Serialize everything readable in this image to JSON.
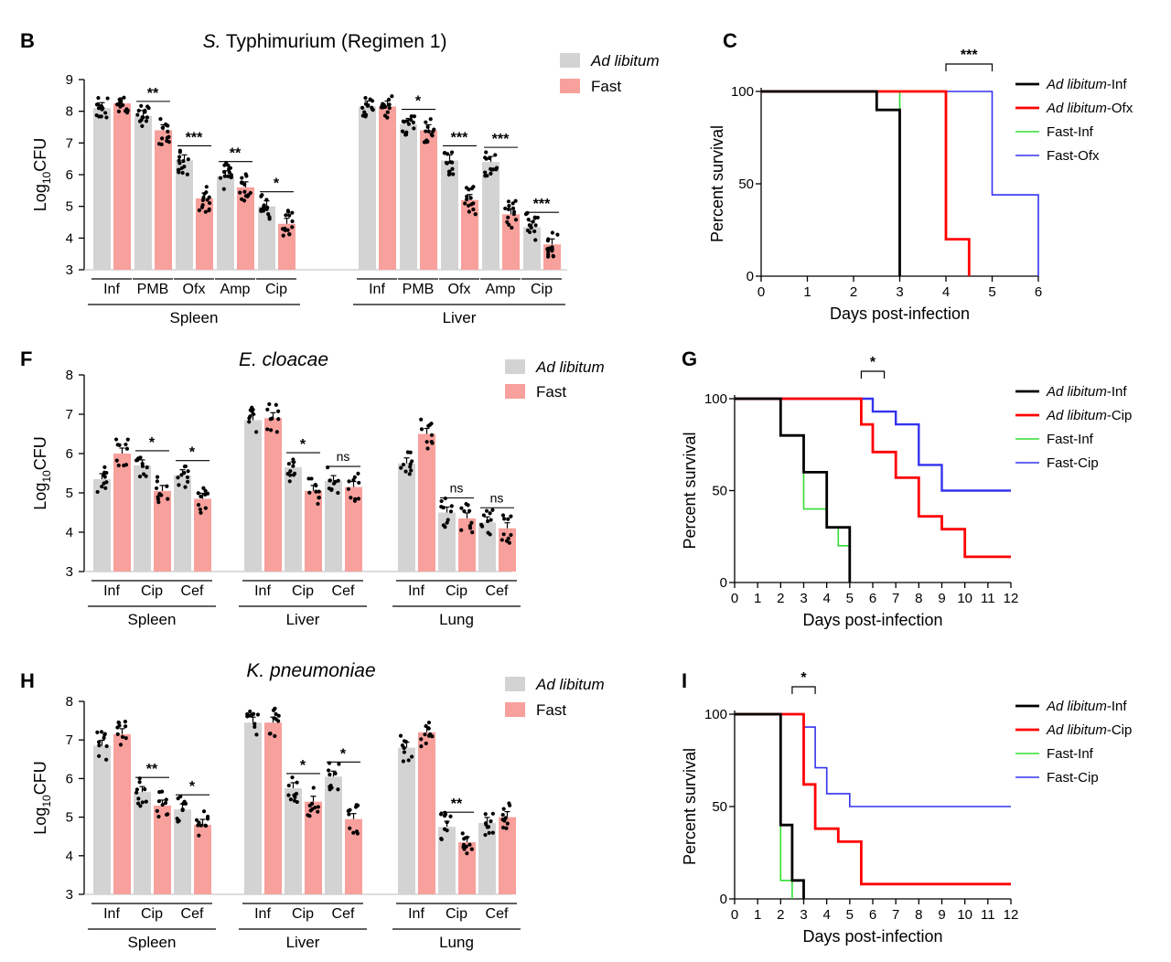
{
  "colors": {
    "ad_libitum": "#d3d3d3",
    "fast": "#f8a09c",
    "axis": "#000000"
  },
  "chart_data": [
    {
      "type": "bar",
      "panel": "B",
      "title": "S. Typhimurium (Regimen 1)",
      "title_italic": "S.",
      "title_rest": " Typhimurium (Regimen 1)",
      "ylabel": "Log10CFU",
      "ylim": [
        3,
        9
      ],
      "yticks": [
        3,
        4,
        5,
        6,
        7,
        8,
        9
      ],
      "legend": [
        "Ad libitum",
        "Fast"
      ],
      "groups": [
        {
          "name": "Spleen",
          "categories": [
            "Inf",
            "PMB",
            "Ofx",
            "Amp",
            "Cip"
          ],
          "ad_libitum": [
            8.1,
            7.85,
            6.45,
            5.95,
            5.0
          ],
          "fast": [
            8.25,
            7.4,
            5.25,
            5.6,
            4.45
          ],
          "sig": [
            "",
            "**",
            "***",
            "**",
            "*"
          ]
        },
        {
          "name": "Liver",
          "categories": [
            "Inf",
            "PMB",
            "Ofx",
            "Amp",
            "Cip"
          ],
          "ad_libitum": [
            8.15,
            7.6,
            6.45,
            6.4,
            4.35
          ],
          "fast": [
            8.15,
            7.4,
            5.2,
            4.75,
            3.8
          ],
          "sig": [
            "",
            "*",
            "***",
            "***",
            "***"
          ]
        }
      ]
    },
    {
      "type": "bar",
      "panel": "F",
      "title": "E. cloacae",
      "ylabel": "Log10CFU",
      "ylim": [
        3,
        8
      ],
      "yticks": [
        3,
        4,
        5,
        6,
        7,
        8
      ],
      "legend": [
        "Ad libitum",
        "Fast"
      ],
      "groups": [
        {
          "name": "Spleen",
          "categories": [
            "Inf",
            "Cip",
            "Cef"
          ],
          "ad_libitum": [
            5.35,
            5.7,
            5.45
          ],
          "fast": [
            6.0,
            5.05,
            4.85
          ],
          "sig": [
            "",
            "*",
            "*"
          ]
        },
        {
          "name": "Liver",
          "categories": [
            "Inf",
            "Cip",
            "Cef"
          ],
          "ad_libitum": [
            6.85,
            5.65,
            5.3
          ],
          "fast": [
            6.9,
            5.05,
            5.15
          ],
          "sig": [
            "",
            "*",
            "ns"
          ]
        },
        {
          "name": "Lung",
          "categories": [
            "Inf",
            "Cip",
            "Cef"
          ],
          "ad_libitum": [
            5.75,
            4.5,
            4.25
          ],
          "fast": [
            6.5,
            4.35,
            4.1
          ],
          "sig": [
            "",
            "ns",
            "ns"
          ]
        }
      ]
    },
    {
      "type": "bar",
      "panel": "H",
      "title": "K. pneumoniae",
      "ylabel": "Log10CFU",
      "ylim": [
        3,
        8
      ],
      "yticks": [
        3,
        4,
        5,
        6,
        7,
        8
      ],
      "legend": [
        "Ad libitum",
        "Fast"
      ],
      "groups": [
        {
          "name": "Spleen",
          "categories": [
            "Inf",
            "Cip",
            "Cef"
          ],
          "ad_libitum": [
            6.85,
            5.65,
            5.2
          ],
          "fast": [
            7.15,
            5.3,
            4.8
          ],
          "sig": [
            "",
            "**",
            "*"
          ]
        },
        {
          "name": "Liver",
          "categories": [
            "Inf",
            "Cip",
            "Cef"
          ],
          "ad_libitum": [
            7.45,
            5.75,
            6.05
          ],
          "fast": [
            7.45,
            5.4,
            4.95
          ],
          "sig": [
            "",
            "*",
            "*"
          ]
        },
        {
          "name": "Lung",
          "categories": [
            "Inf",
            "Cip",
            "Cef"
          ],
          "ad_libitum": [
            6.8,
            4.75,
            4.85
          ],
          "fast": [
            7.2,
            4.35,
            5.0
          ],
          "sig": [
            "",
            "**",
            ""
          ]
        }
      ]
    },
    {
      "type": "line",
      "panel": "C",
      "xlabel": "Days post-infection",
      "ylabel": "Percent survival",
      "xlim": [
        0,
        6
      ],
      "xticks": [
        0,
        1,
        2,
        3,
        4,
        5,
        6
      ],
      "ylim": [
        0,
        100
      ],
      "yticks": [
        0,
        50,
        100
      ],
      "sig": "***",
      "sig_x": [
        4,
        5
      ],
      "series": [
        {
          "name": "Ad libitum-Inf",
          "name_italic": "Ad libitum",
          "name_rest": "-Inf",
          "color": "#000000",
          "points": [
            [
              0,
              100
            ],
            [
              2.5,
              100
            ],
            [
              2.5,
              90
            ],
            [
              3,
              90
            ],
            [
              3,
              0
            ]
          ]
        },
        {
          "name": "Ad libitum-Ofx",
          "name_italic": "Ad libitum",
          "name_rest": "-Ofx",
          "color": "#ff0000",
          "points": [
            [
              0,
              100
            ],
            [
              4,
              100
            ],
            [
              4,
              20
            ],
            [
              4.5,
              20
            ],
            [
              4.5,
              0
            ]
          ]
        },
        {
          "name": "Fast-Inf",
          "color": "#33dd33",
          "points": [
            [
              0,
              100
            ],
            [
              2.5,
              100
            ],
            [
              2.5,
              100
            ],
            [
              3,
              100
            ],
            [
              3,
              0
            ]
          ]
        },
        {
          "name": "Fast-Ofx",
          "color": "#3333ee",
          "points": [
            [
              0,
              100
            ],
            [
              5,
              100
            ],
            [
              5,
              44
            ],
            [
              6,
              44
            ],
            [
              6,
              0
            ]
          ]
        }
      ]
    },
    {
      "type": "line",
      "panel": "G",
      "xlabel": "Days post-infection",
      "ylabel": "Percent survival",
      "xlim": [
        0,
        12
      ],
      "xticks": [
        0,
        1,
        2,
        3,
        4,
        5,
        6,
        7,
        8,
        9,
        10,
        11,
        12
      ],
      "ylim": [
        0,
        100
      ],
      "yticks": [
        0,
        50,
        100
      ],
      "sig": "*",
      "sig_x": [
        5.5,
        6.5
      ],
      "series": [
        {
          "name": "Ad libitum-Inf",
          "name_italic": "Ad libitum",
          "name_rest": "-Inf",
          "color": "#000000",
          "points": [
            [
              0,
              100
            ],
            [
              2,
              100
            ],
            [
              2,
              80
            ],
            [
              3,
              80
            ],
            [
              3,
              60
            ],
            [
              4,
              60
            ],
            [
              4,
              30
            ],
            [
              5,
              30
            ],
            [
              5,
              0
            ]
          ]
        },
        {
          "name": "Ad libitum-Cip",
          "name_italic": "Ad libitum",
          "name_rest": "-Cip",
          "color": "#ff0000",
          "points": [
            [
              0,
              100
            ],
            [
              5.5,
              100
            ],
            [
              5.5,
              86
            ],
            [
              6,
              86
            ],
            [
              6,
              71
            ],
            [
              7,
              71
            ],
            [
              7,
              57
            ],
            [
              8,
              57
            ],
            [
              8,
              36
            ],
            [
              9,
              36
            ],
            [
              9,
              29
            ],
            [
              10,
              29
            ],
            [
              10,
              14
            ],
            [
              12,
              14
            ]
          ]
        },
        {
          "name": "Fast-Inf",
          "color": "#33dd33",
          "points": [
            [
              0,
              100
            ],
            [
              2,
              100
            ],
            [
              2,
              80
            ],
            [
              3,
              80
            ],
            [
              3,
              40
            ],
            [
              4,
              40
            ],
            [
              4,
              30
            ],
            [
              4.5,
              30
            ],
            [
              4.5,
              20
            ],
            [
              5,
              20
            ],
            [
              5,
              0
            ]
          ]
        },
        {
          "name": "Fast-Cip",
          "color": "#3333ee",
          "points": [
            [
              0,
              100
            ],
            [
              6,
              100
            ],
            [
              6,
              93
            ],
            [
              7,
              93
            ],
            [
              7,
              86
            ],
            [
              8,
              86
            ],
            [
              8,
              64
            ],
            [
              9,
              64
            ],
            [
              9,
              50
            ],
            [
              12,
              50
            ]
          ]
        }
      ]
    },
    {
      "type": "line",
      "panel": "I",
      "xlabel": "Days post-infection",
      "ylabel": "Percent survival",
      "xlim": [
        0,
        12
      ],
      "xticks": [
        0,
        1,
        2,
        3,
        4,
        5,
        6,
        7,
        8,
        9,
        10,
        11,
        12
      ],
      "ylim": [
        0,
        100
      ],
      "yticks": [
        0,
        50,
        100
      ],
      "sig": "*",
      "sig_x": [
        2.5,
        3.5
      ],
      "series": [
        {
          "name": "Ad libitum-Inf",
          "name_italic": "Ad libitum",
          "name_rest": "-Inf",
          "color": "#000000",
          "points": [
            [
              0,
              100
            ],
            [
              2,
              100
            ],
            [
              2,
              40
            ],
            [
              2.5,
              40
            ],
            [
              2.5,
              10
            ],
            [
              3,
              10
            ],
            [
              3,
              0
            ]
          ]
        },
        {
          "name": "Ad libitum-Cip",
          "name_italic": "Ad libitum",
          "name_rest": "-Cip",
          "color": "#ff0000",
          "points": [
            [
              0,
              100
            ],
            [
              3,
              100
            ],
            [
              3,
              62
            ],
            [
              3.5,
              62
            ],
            [
              3.5,
              38
            ],
            [
              4.5,
              38
            ],
            [
              4.5,
              31
            ],
            [
              5.5,
              31
            ],
            [
              5.5,
              8
            ],
            [
              12,
              8
            ]
          ]
        },
        {
          "name": "Fast-Inf",
          "color": "#33dd33",
          "points": [
            [
              0,
              100
            ],
            [
              2,
              100
            ],
            [
              2,
              10
            ],
            [
              2.5,
              10
            ],
            [
              2.5,
              0
            ]
          ]
        },
        {
          "name": "Fast-Cip",
          "color": "#3333ee",
          "points": [
            [
              0,
              100
            ],
            [
              3,
              100
            ],
            [
              3,
              93
            ],
            [
              3.5,
              93
            ],
            [
              3.5,
              71
            ],
            [
              4,
              71
            ],
            [
              4,
              57
            ],
            [
              5,
              57
            ],
            [
              5,
              50
            ],
            [
              12,
              50
            ]
          ]
        }
      ]
    }
  ]
}
